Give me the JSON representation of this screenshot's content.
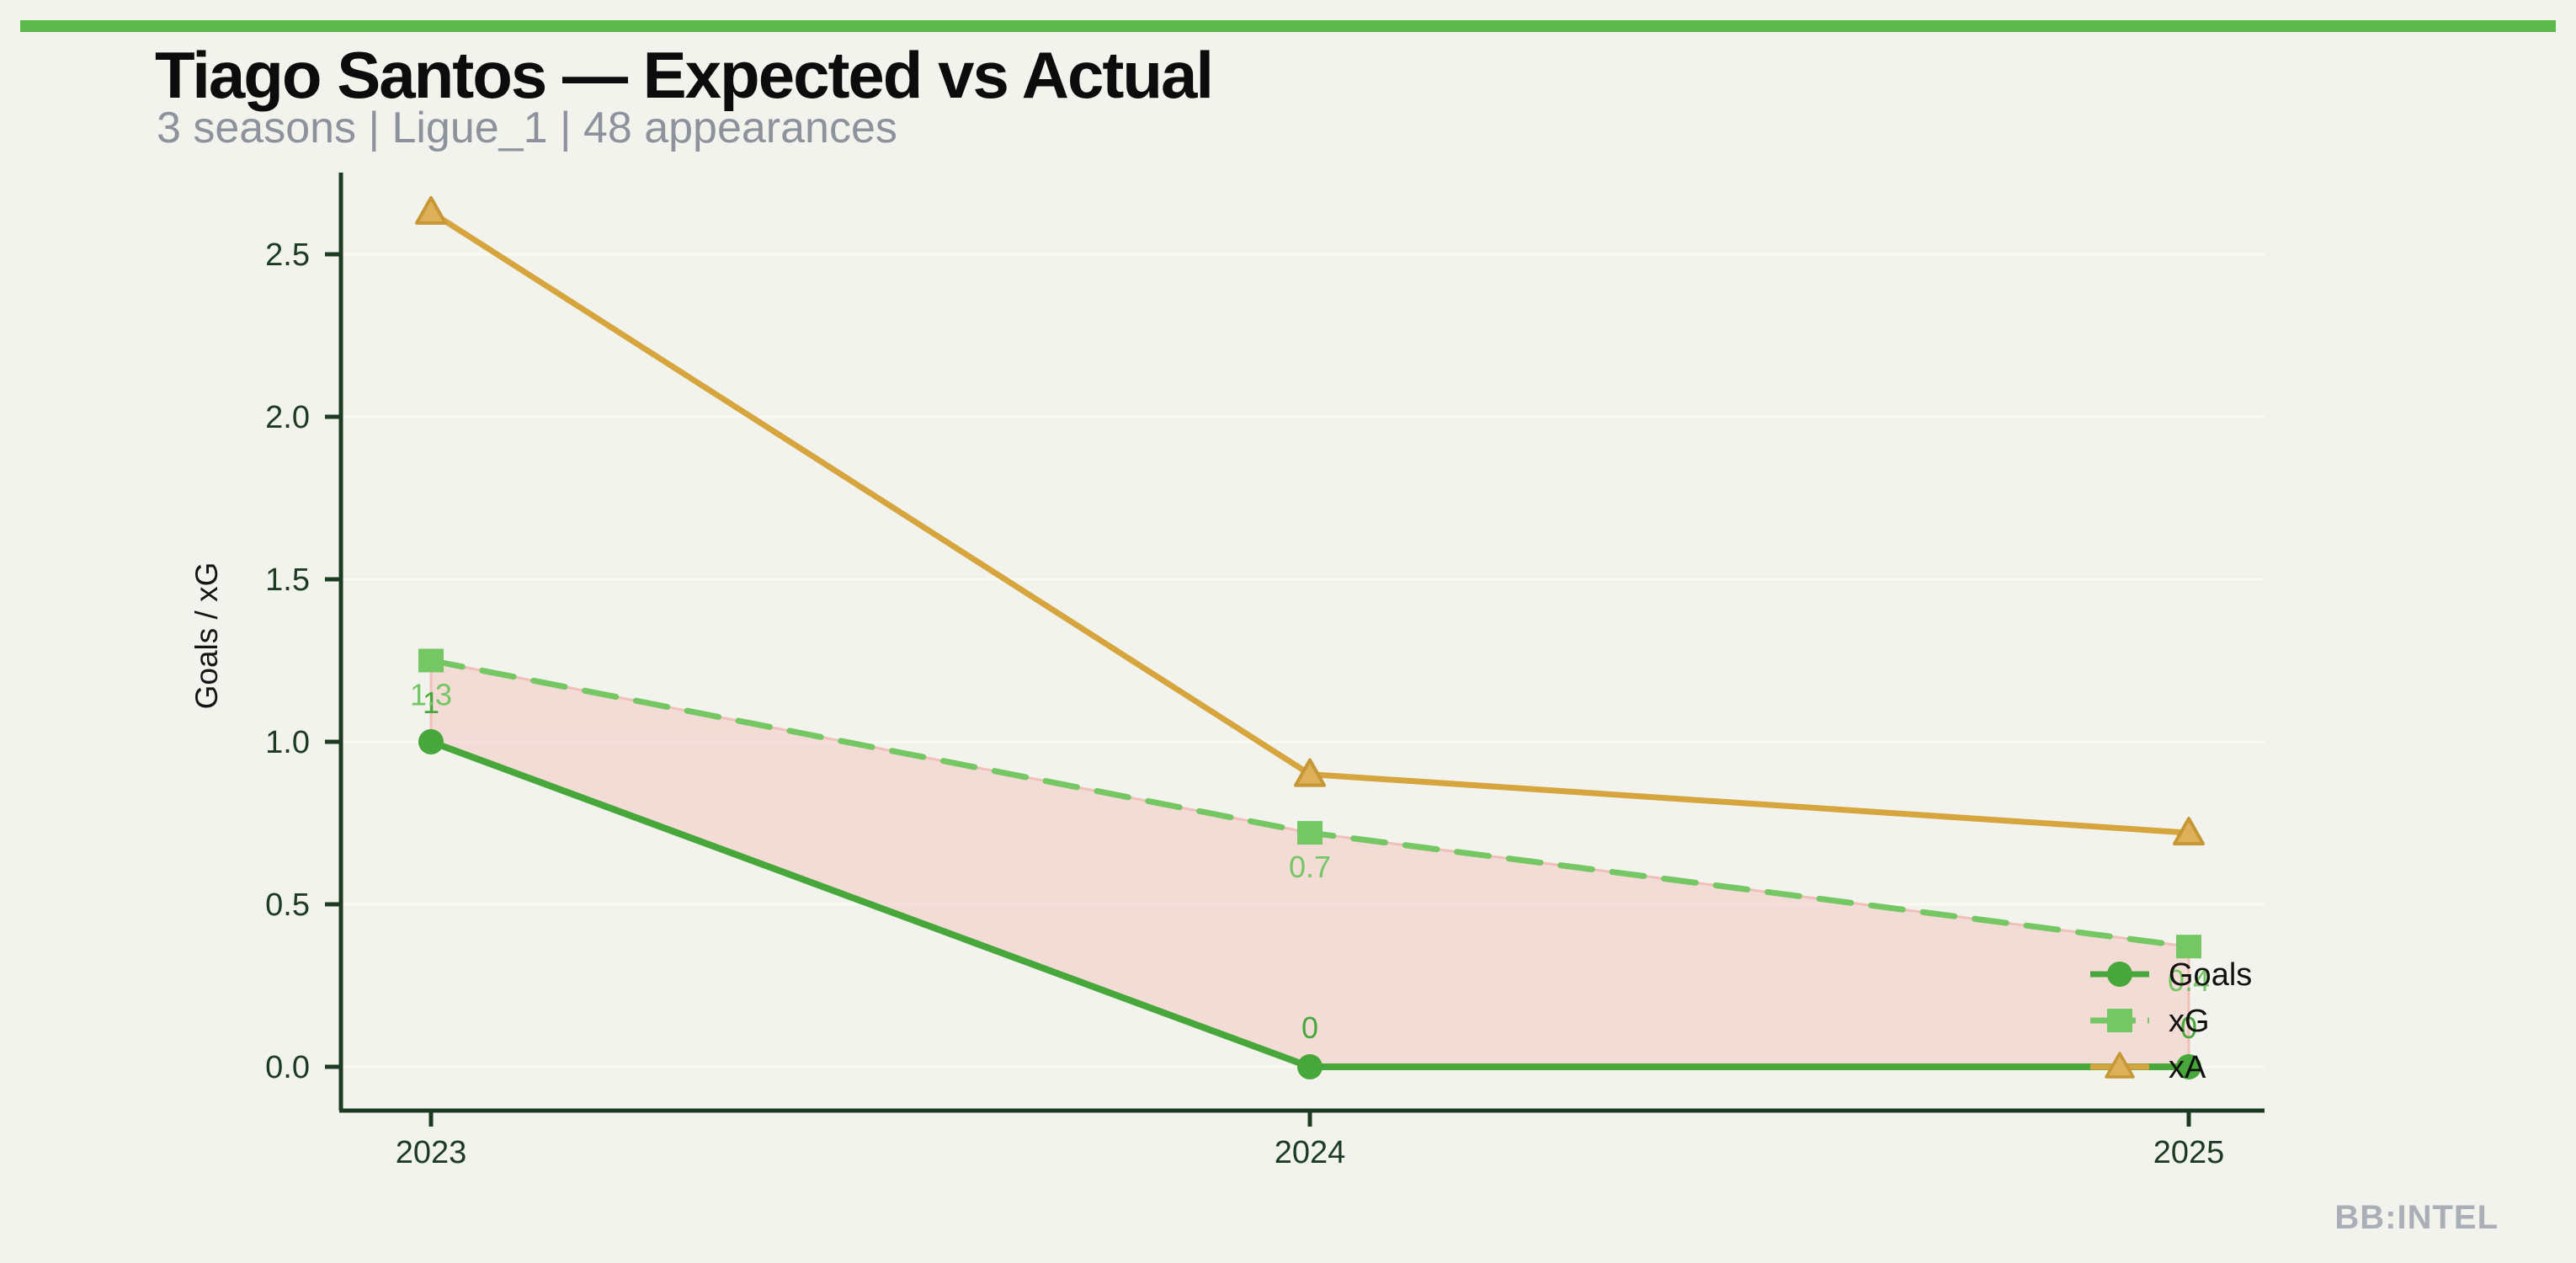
{
  "page": {
    "background": "#f2f3ec",
    "top_bar_color": "#5bb84a"
  },
  "watermark": "BB:INTEL",
  "chart_data": {
    "type": "line",
    "title": "Tiago Santos — Expected vs Actual",
    "subtitle": "3 seasons | Ligue_1 | 48 appearances",
    "xlabel": "",
    "ylabel": "Goals / xG",
    "x_labels": [
      "2023",
      "2024",
      "2025"
    ],
    "yticks": [
      "0.0",
      "0.5",
      "1.0",
      "1.5",
      "2.0",
      "2.5"
    ],
    "ylim": [
      0,
      2.75
    ],
    "grid": "faint horizontal gridlines at each y tick",
    "legend_position": "inside lower-right",
    "series": [
      {
        "name": "Goals",
        "marker": "circle",
        "line": "solid",
        "color": "#47a73a",
        "marker_fill": "#47a73a",
        "values": [
          1,
          0,
          0
        ],
        "point_labels": [
          "1",
          "0",
          "0"
        ],
        "point_label_side": "above"
      },
      {
        "name": "xG",
        "marker": "square",
        "line": "dashed",
        "color": "#74c763",
        "marker_fill": "#74c763",
        "values": [
          1.25,
          0.72,
          0.37
        ],
        "point_labels": [
          "1.3",
          "0.7",
          "0.4"
        ],
        "point_label_side": "below"
      },
      {
        "name": "xA",
        "marker": "triangle",
        "line": "solid",
        "color": "#d7a53e",
        "marker_fill": "#deb059",
        "values": [
          2.63,
          0.9,
          0.72
        ],
        "point_labels": [],
        "point_label_side": "none"
      }
    ],
    "shade_between": {
      "upper": "xG",
      "lower": "Goals",
      "fill": "#f3c4bf",
      "stroke": "#f0b8b2"
    }
  },
  "colors": {
    "axis": "#1d3b23",
    "tick_label": "#1d3b23",
    "axis_title": "#141414",
    "legend_text": "#111111",
    "gridline": "#fafbf5"
  }
}
